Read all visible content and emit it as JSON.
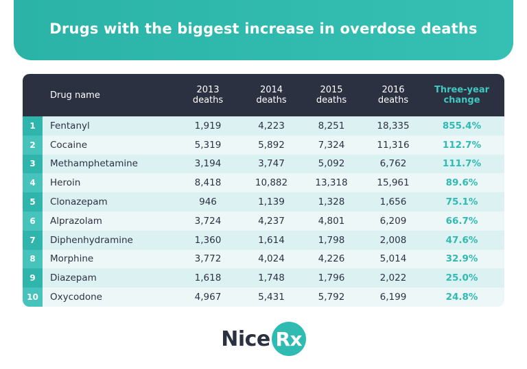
{
  "header": {
    "title": "Drugs with the biggest increase in overdose deaths"
  },
  "table": {
    "columns": [
      "Drug name",
      "2013 deaths",
      "2014 deaths",
      "2015 deaths",
      "2016 deaths",
      "Three-year change"
    ],
    "rows": [
      [
        "1",
        "Fentanyl",
        "1,919",
        "4,223",
        "8,251",
        "18,335",
        "855.4%"
      ],
      [
        "2",
        "Cocaine",
        "5,319",
        "5,892",
        "7,324",
        "11,316",
        "112.7%"
      ],
      [
        "3",
        "Methamphetamine",
        "3,194",
        "3,747",
        "5,092",
        "6,762",
        "111.7%"
      ],
      [
        "4",
        "Heroin",
        "8,418",
        "10,882",
        "13,318",
        "15,961",
        "89.6%"
      ],
      [
        "5",
        "Clonazepam",
        "946",
        "1,139",
        "1,328",
        "1,656",
        "75.1%"
      ],
      [
        "6",
        "Alprazolam",
        "3,724",
        "4,237",
        "4,801",
        "6,209",
        "66.7%"
      ],
      [
        "7",
        "Diphenhydramine",
        "1,360",
        "1,614",
        "1,798",
        "2,008",
        "47.6%"
      ],
      [
        "8",
        "Morphine",
        "3,772",
        "4,024",
        "4,226",
        "5,014",
        "32.9%"
      ],
      [
        "9",
        "Diazepam",
        "1,618",
        "1,748",
        "1,796",
        "2,022",
        "25.0%"
      ],
      [
        "10",
        "Oxycodone",
        "4,967",
        "5,431",
        "5,792",
        "6,199",
        "24.8%"
      ]
    ]
  },
  "logo": {
    "parts": [
      "Nice",
      "Rx"
    ]
  }
}
